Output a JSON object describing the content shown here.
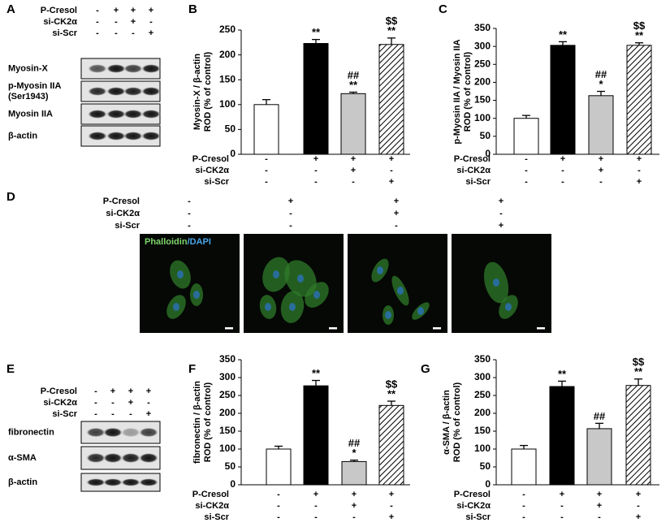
{
  "chart_data": [
    {
      "type": "bar",
      "panel": "B",
      "ylabel": [
        "Myosin-X / β-actin",
        "ROD (% of control)"
      ],
      "values": [
        100,
        223,
        122,
        221
      ],
      "errors": [
        10,
        8,
        3,
        13
      ],
      "annotations": [
        [],
        [
          "**"
        ],
        [
          "##",
          "**"
        ],
        [
          "$$",
          "**"
        ]
      ],
      "fills": [
        "#ffffff",
        "#000000",
        "#c8c8c8",
        "hatch"
      ],
      "ylim": [
        0,
        250
      ],
      "yticks": [
        0,
        50,
        100,
        150,
        200,
        250
      ],
      "treatments": [
        {
          "name": "P-Cresol",
          "signs": [
            "-",
            "+",
            "+",
            "+"
          ]
        },
        {
          "name": "si-CK2α",
          "signs": [
            "-",
            "-",
            "+",
            "-"
          ]
        },
        {
          "name": "si-Scr",
          "signs": [
            "-",
            "-",
            "-",
            "+"
          ]
        }
      ]
    },
    {
      "type": "bar",
      "panel": "C",
      "ylabel": [
        "p-Myosin IIA / Myosin IIA",
        "ROD (% of control)"
      ],
      "values": [
        100,
        303,
        163,
        303
      ],
      "errors": [
        8,
        10,
        12,
        7
      ],
      "annotations": [
        [],
        [
          "**"
        ],
        [
          "##",
          "*"
        ],
        [
          "$$",
          "**"
        ]
      ],
      "fills": [
        "#ffffff",
        "#000000",
        "#c8c8c8",
        "hatch"
      ],
      "ylim": [
        0,
        350
      ],
      "yticks": [
        0,
        50,
        100,
        150,
        200,
        250,
        300,
        350
      ],
      "treatments": [
        {
          "name": "P-Cresol",
          "signs": [
            "-",
            "+",
            "+",
            "+"
          ]
        },
        {
          "name": "si-CK2α",
          "signs": [
            "-",
            "-",
            "+",
            "-"
          ]
        },
        {
          "name": "si-Scr",
          "signs": [
            "-",
            "-",
            "-",
            "+"
          ]
        }
      ]
    },
    {
      "type": "bar",
      "panel": "F",
      "ylabel": [
        "fibronectin / β-actin",
        "ROD (% of control)"
      ],
      "values": [
        100,
        277,
        65,
        222
      ],
      "errors": [
        8,
        15,
        4,
        12
      ],
      "annotations": [
        [],
        [
          "**"
        ],
        [
          "##",
          "*"
        ],
        [
          "$$",
          "**"
        ]
      ],
      "fills": [
        "#ffffff",
        "#000000",
        "#c8c8c8",
        "hatch"
      ],
      "ylim": [
        0,
        350
      ],
      "yticks": [
        0,
        50,
        100,
        150,
        200,
        250,
        300,
        350
      ],
      "treatments": [
        {
          "name": "P-Cresol",
          "signs": [
            "-",
            "+",
            "+",
            "+"
          ]
        },
        {
          "name": "si-CK2α",
          "signs": [
            "-",
            "-",
            "+",
            "-"
          ]
        },
        {
          "name": "si-Scr",
          "signs": [
            "-",
            "-",
            "-",
            "+"
          ]
        }
      ]
    },
    {
      "type": "bar",
      "panel": "G",
      "ylabel": [
        "α-SMA / β-actin",
        "ROD (% of control)"
      ],
      "values": [
        100,
        275,
        157,
        278
      ],
      "errors": [
        10,
        15,
        15,
        18
      ],
      "annotations": [
        [],
        [
          "**"
        ],
        [
          "##"
        ],
        [
          "$$",
          "**"
        ]
      ],
      "fills": [
        "#ffffff",
        "#000000",
        "#c8c8c8",
        "hatch"
      ],
      "ylim": [
        0,
        350
      ],
      "yticks": [
        0,
        50,
        100,
        150,
        200,
        250,
        300,
        350
      ],
      "treatments": [
        {
          "name": "P-Cresol",
          "signs": [
            "-",
            "+",
            "+",
            "+"
          ]
        },
        {
          "name": "si-CK2α",
          "signs": [
            "-",
            "-",
            "+",
            "-"
          ]
        },
        {
          "name": "si-Scr",
          "signs": [
            "-",
            "-",
            "-",
            "+"
          ]
        }
      ]
    }
  ],
  "blots": [
    {
      "panel": "A",
      "treatments": [
        {
          "name": "P-Cresol",
          "signs": [
            "-",
            "+",
            "+",
            "+"
          ]
        },
        {
          "name": "si-CK2α",
          "signs": [
            "-",
            "-",
            "+",
            "-"
          ]
        },
        {
          "name": "si-Scr",
          "signs": [
            "-",
            "-",
            "-",
            "+"
          ]
        }
      ],
      "bands": [
        [
          "Myosin-X"
        ],
        [
          "p-Myosin IIA",
          "(Ser1943)"
        ],
        [
          "Myosin IIA"
        ],
        [
          "β-actin"
        ]
      ]
    },
    {
      "panel": "E",
      "treatments": [
        {
          "name": "P-Cresol",
          "signs": [
            "-",
            "+",
            "+",
            "+"
          ]
        },
        {
          "name": "si-CK2α",
          "signs": [
            "-",
            "-",
            "+",
            "-"
          ]
        },
        {
          "name": "si-Scr",
          "signs": [
            "-",
            "-",
            "-",
            "+"
          ]
        }
      ],
      "bands": [
        [
          "fibronectin"
        ],
        [
          "α-SMA"
        ],
        [
          "β-actin"
        ]
      ]
    }
  ],
  "micrographs": {
    "panel": "D",
    "treatments": [
      {
        "name": "P-Cresol",
        "signs": [
          "-",
          "+",
          "+",
          "+"
        ]
      },
      {
        "name": "si-CK2α",
        "signs": [
          "-",
          "-",
          "+",
          "-"
        ]
      },
      {
        "name": "si-Scr",
        "signs": [
          "-",
          "-",
          "-",
          "+"
        ]
      }
    ],
    "stain": [
      "Phalloidin",
      "/DAPI"
    ]
  }
}
